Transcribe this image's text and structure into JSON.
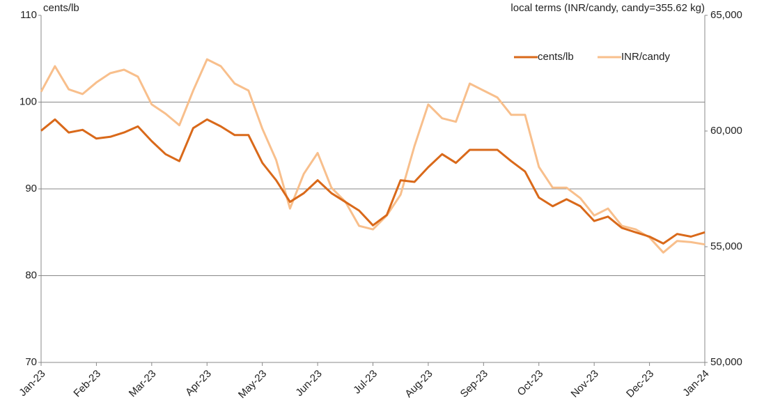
{
  "chart_data": {
    "type": "line",
    "y_label": "cents/lb",
    "y2_label": "local terms (INR/candy, candy=355.62 kg)",
    "categories": [
      "Jan-23",
      null,
      null,
      null,
      "Feb-23",
      null,
      null,
      null,
      "Mar-23",
      null,
      null,
      null,
      "Apr-23",
      null,
      null,
      null,
      "May-23",
      null,
      null,
      null,
      "Jun-23",
      null,
      null,
      null,
      "Jul-23",
      null,
      null,
      null,
      "Aug-23",
      null,
      null,
      null,
      "Sep-23",
      null,
      null,
      null,
      "Oct-23",
      null,
      null,
      null,
      "Nov-23",
      null,
      null,
      null,
      "Dec-23",
      null,
      null,
      null,
      "Jan-24"
    ],
    "series": [
      {
        "name": "cents/lb",
        "color": "#d9691a",
        "values": [
          96.7,
          98,
          96.5,
          96.8,
          95.8,
          96,
          96.5,
          97.2,
          95.5,
          94,
          93.2,
          97,
          98,
          97.2,
          96.2,
          96.2,
          93,
          91,
          88.5,
          89.5,
          91,
          89.5,
          88.5,
          87.5,
          85.8,
          87,
          91,
          90.8,
          92.5,
          94,
          93,
          94.5,
          94.5,
          94.5,
          93.2,
          92,
          89,
          88,
          88.8,
          88,
          86.3,
          86.8,
          85.5,
          85,
          84.5,
          83.7,
          84.8,
          84.5,
          85
        ]
      },
      {
        "name": "INR/candy",
        "color": "#f8bf8c",
        "axis": "y2",
        "values": [
          61700,
          62800,
          61800,
          61600,
          62100,
          62500,
          62650,
          62350,
          61150,
          60750,
          60250,
          61750,
          63100,
          62800,
          62050,
          61750,
          60100,
          58750,
          56650,
          58150,
          59050,
          57550,
          56950,
          55900,
          55750,
          56350,
          57250,
          59350,
          61150,
          60550,
          60400,
          62050,
          61750,
          61450,
          60700,
          60700,
          58450,
          57550,
          57550,
          57100,
          56350,
          56650,
          55900,
          55750,
          55400,
          54750,
          55250,
          55200,
          55100
        ]
      }
    ],
    "ylim": [
      70,
      110
    ],
    "yticks": [
      70,
      80,
      90,
      100,
      110
    ],
    "y2lim": [
      50000,
      65000
    ],
    "y2ticks": [
      {
        "value": 50000,
        "label": "50,000"
      },
      {
        "value": 55000,
        "label": "55,000"
      },
      {
        "value": 60000,
        "label": "60,000"
      },
      {
        "value": 65000,
        "label": "65,000"
      }
    ],
    "grid": true,
    "legend": "upper right"
  }
}
